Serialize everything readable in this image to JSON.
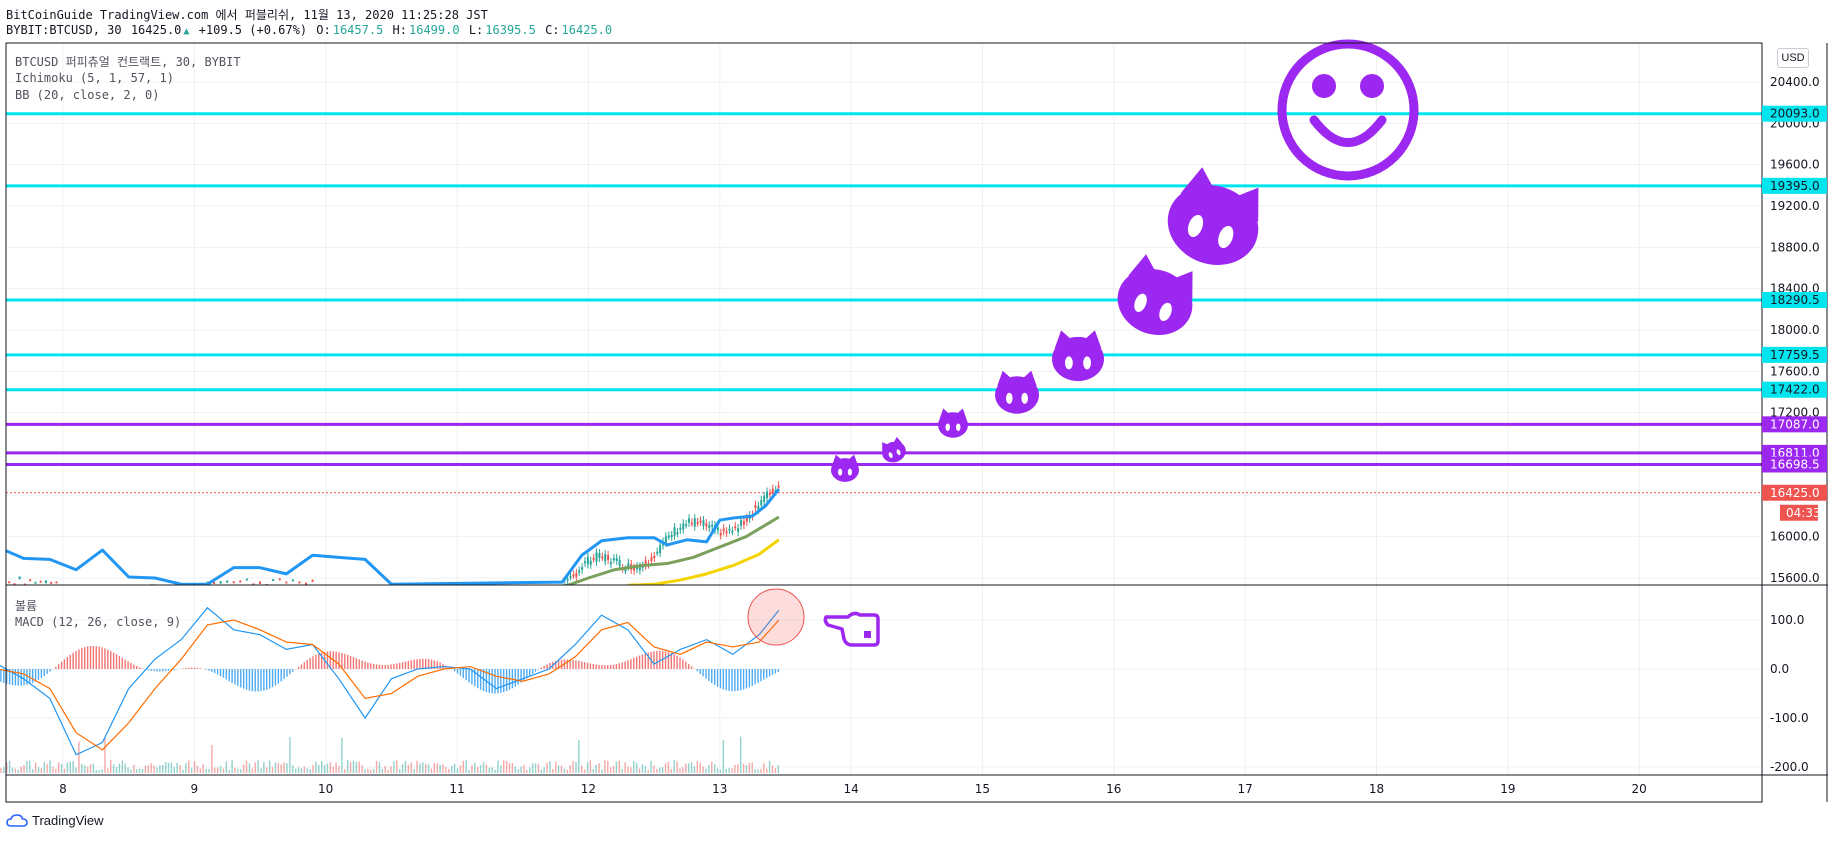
{
  "header": {
    "line1": "BitCoinGuide TradingView.com 에서 퍼블리쉬, 11월 13, 2020 11:25:28 JST",
    "symbol": "BYBIT:BTCUSD, 30",
    "last": "16425.0",
    "change": "+109.5 (+0.67%)",
    "o_label": "O:",
    "o_value": "16457.5",
    "h_label": "H:",
    "h_value": "16499.0",
    "l_label": "L:",
    "l_value": "16395.5",
    "c_label": "C:",
    "c_value": "16425.0"
  },
  "legend": {
    "title": "BTCUSD 퍼피츄얼 컨트랙트, 30, BYBIT",
    "ichimoku": "Ichimoku (5, 1, 57, 1)",
    "bb": "BB (20, close, 2, 0)",
    "volume": "볼륨",
    "macd": "MACD (12, 26, close, 9)"
  },
  "currency_button": "USD",
  "brand": "TradingView",
  "colors": {
    "cyan_line": "#00e5ee",
    "purple_line": "#9c27f0",
    "up": "#26a69a",
    "down": "#ef5350",
    "macd": "#2196f3",
    "signal": "#ff6d00",
    "price_tag": "#ef5350",
    "drawings": "#9c27f0"
  },
  "chart_data": [
    {
      "type": "line",
      "title": "BTCUSD 퍼피츄얼 컨트랙트, 30, BYBIT",
      "x_ticks": [
        "8",
        "9",
        "10",
        "11",
        "12",
        "13",
        "14",
        "15",
        "16",
        "17",
        "18",
        "19",
        "20"
      ],
      "y_ticks": [
        15600,
        16000,
        16400,
        16800,
        17200,
        17600,
        18000,
        18400,
        18800,
        19200,
        19600,
        20000,
        20400
      ],
      "y_tick_labels": [
        "15600.0",
        "16000.0",
        "16400.0",
        "16800.0",
        "17200.0",
        "17600.0",
        "18000.0",
        "18400.0",
        "18800.0",
        "19200.0",
        "19600.0",
        "20000.0",
        "20400.0"
      ],
      "ylim": [
        15550,
        20770
      ],
      "horizontal_levels": [
        {
          "value": 20093.0,
          "label": "20093.0",
          "color": "cyan"
        },
        {
          "value": 19395.0,
          "label": "19395.0",
          "color": "cyan"
        },
        {
          "value": 18290.5,
          "label": "18290.5",
          "color": "cyan"
        },
        {
          "value": 17759.5,
          "label": "17759.5",
          "color": "cyan"
        },
        {
          "value": 17422.0,
          "label": "17422.0",
          "color": "cyan"
        },
        {
          "value": 17087.0,
          "label": "17087.0",
          "color": "purple"
        },
        {
          "value": 16811.0,
          "label": "16811.0",
          "color": "purple"
        },
        {
          "value": 16698.5,
          "label": "16698.5",
          "color": "purple"
        }
      ],
      "last_price": {
        "value": 16425.0,
        "label": "16425.0",
        "countdown": "04:33"
      },
      "series": [
        {
          "name": "BB upper",
          "x": [
            7.5,
            7.7,
            7.9,
            8.1,
            8.3,
            8.5,
            8.7,
            8.9,
            9.1,
            9.3,
            9.5,
            9.7,
            9.9,
            10.1,
            10.3,
            10.5,
            11.8,
            11.95,
            12.1,
            12.3,
            12.5,
            12.6,
            12.75,
            12.9,
            13.0,
            13.1,
            13.25,
            13.35,
            13.45
          ],
          "y": [
            15900,
            15790,
            15780,
            15680,
            15870,
            15610,
            15600,
            15540,
            15540,
            15700,
            15700,
            15640,
            15820,
            15800,
            15780,
            15540,
            15560,
            15820,
            15960,
            15990,
            15990,
            15920,
            15970,
            15950,
            16160,
            16180,
            16200,
            16300,
            16460
          ]
        },
        {
          "name": "Ichimoku base",
          "x": [
            11.8,
            12.0,
            12.2,
            12.4,
            12.6,
            12.8,
            13.0,
            13.2,
            13.45
          ],
          "y": [
            15510,
            15600,
            15680,
            15720,
            15740,
            15800,
            15900,
            16000,
            16190
          ]
        },
        {
          "name": "Ichimoku cloud lower",
          "x": [
            12.3,
            12.5,
            12.7,
            12.9,
            13.1,
            13.3,
            13.45
          ],
          "y": [
            15530,
            15540,
            15580,
            15640,
            15720,
            15830,
            15970
          ]
        }
      ]
    },
    {
      "type": "bar",
      "title": "MACD (12, 26, close, 9)",
      "y_ticks": [
        -200,
        -100,
        0,
        100
      ],
      "y_tick_labels": [
        "-200.0",
        "-100.0",
        "0.0",
        "100.0"
      ],
      "ylim": [
        -220,
        140
      ],
      "series": [
        {
          "name": "MACD",
          "x": [
            7.5,
            7.7,
            7.9,
            8.1,
            8.3,
            8.5,
            8.7,
            8.9,
            9.1,
            9.3,
            9.5,
            9.7,
            9.9,
            10.1,
            10.3,
            10.5,
            10.7,
            10.9,
            11.1,
            11.3,
            11.5,
            11.7,
            11.9,
            12.1,
            12.3,
            12.5,
            12.7,
            12.9,
            13.1,
            13.3,
            13.45
          ],
          "y": [
            10,
            -20,
            -60,
            -175,
            -150,
            -40,
            20,
            60,
            125,
            80,
            70,
            40,
            50,
            -20,
            -100,
            -20,
            0,
            5,
            0,
            -40,
            -20,
            0,
            50,
            110,
            80,
            10,
            40,
            60,
            30,
            70,
            120
          ]
        },
        {
          "name": "Signal",
          "x": [
            7.5,
            7.7,
            7.9,
            8.1,
            8.3,
            8.5,
            8.7,
            8.9,
            9.1,
            9.3,
            9.5,
            9.7,
            9.9,
            10.1,
            10.3,
            10.5,
            10.7,
            10.9,
            11.1,
            11.3,
            11.5,
            11.7,
            11.9,
            12.1,
            12.3,
            12.5,
            12.7,
            12.9,
            13.1,
            13.3,
            13.45
          ],
          "y": [
            0,
            -10,
            -40,
            -130,
            -165,
            -110,
            -40,
            20,
            90,
            100,
            80,
            55,
            50,
            10,
            -60,
            -50,
            -15,
            0,
            5,
            -15,
            -25,
            -10,
            25,
            80,
            95,
            45,
            30,
            55,
            45,
            55,
            100
          ]
        }
      ]
    }
  ]
}
